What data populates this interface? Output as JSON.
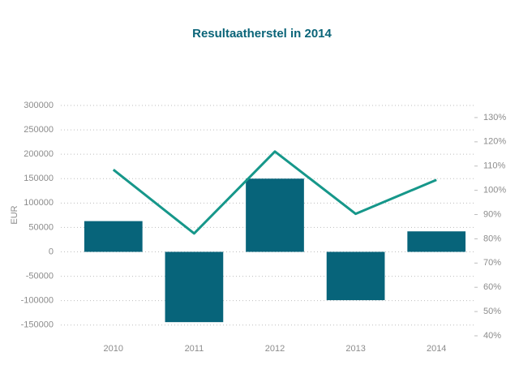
{
  "chart_data": {
    "type": "combo",
    "title": "Resultaatherstel in 2014",
    "ylabel": "EUR",
    "categories": [
      "2010",
      "2011",
      "2012",
      "2013",
      "2014"
    ],
    "series": [
      {
        "type": "bar",
        "color": "#07647a",
        "values": [
          63000,
          -144000,
          150000,
          -99000,
          42000
        ]
      },
      {
        "type": "line",
        "color": "#16978a",
        "axis": "y2",
        "values": [
          108.5,
          82.2,
          116,
          90.3,
          104.3
        ]
      }
    ],
    "ylim": [
      -172000,
      300000
    ],
    "yticks": [
      -150000,
      -100000,
      -50000,
      0,
      50000,
      100000,
      150000,
      200000,
      250000,
      300000
    ],
    "y2lim": [
      40,
      135
    ],
    "y2ticks": [
      {
        "value": 40,
        "label": "40%"
      },
      {
        "value": 50,
        "label": "50%"
      },
      {
        "value": 60,
        "label": "60%"
      },
      {
        "value": 70,
        "label": "70%"
      },
      {
        "value": 80,
        "label": "80%"
      },
      {
        "value": 90,
        "label": "90%"
      },
      {
        "value": 100,
        "label": "100%"
      },
      {
        "value": 110,
        "label": "110%"
      },
      {
        "value": 120,
        "label": "120%"
      },
      {
        "value": 130,
        "label": "130%"
      }
    ],
    "grid": true
  }
}
